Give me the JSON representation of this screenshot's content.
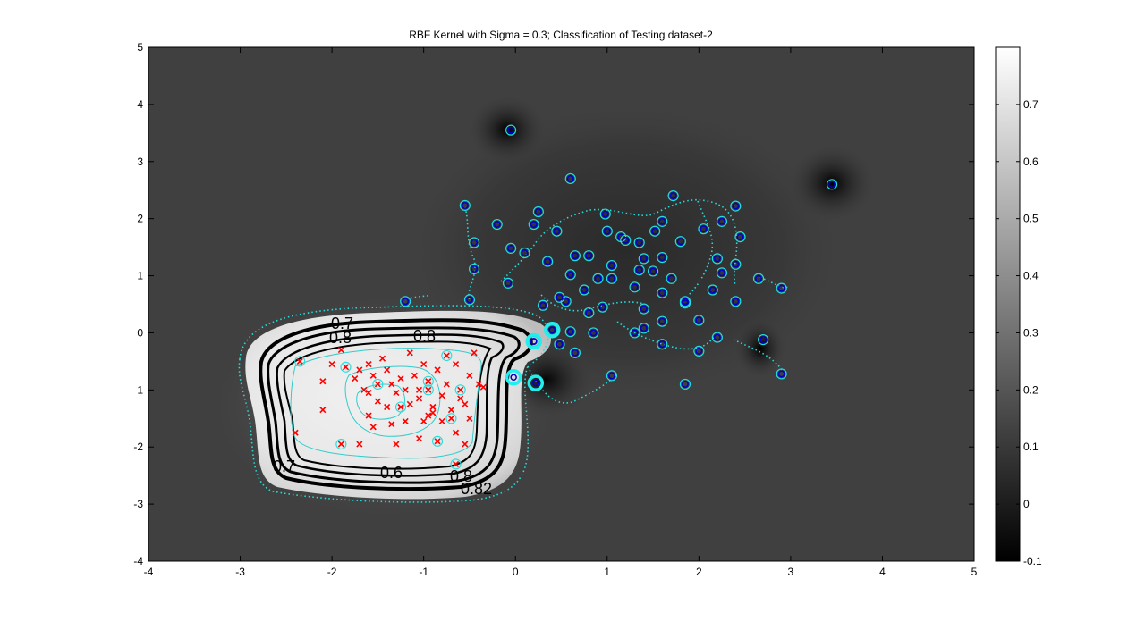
{
  "chart_data": {
    "type": "scatter",
    "title": "RBF Kernel with Sigma = 0.3; Classification of Testing dataset-2",
    "xlim": [
      -4,
      5
    ],
    "ylim": [
      -4,
      5
    ],
    "x_ticks": [
      "-4",
      "-3",
      "-2",
      "-1",
      "0",
      "1",
      "2",
      "3",
      "4",
      "5"
    ],
    "y_ticks": [
      "-4",
      "-3",
      "-2",
      "-1",
      "0",
      "1",
      "2",
      "3",
      "4",
      "5"
    ],
    "colorbar": {
      "range": [
        -0.1,
        0.8
      ],
      "ticks": [
        "-0.1",
        "0",
        "0.1",
        "0.2",
        "0.3",
        "0.4",
        "0.5",
        "0.6",
        "0.7"
      ],
      "colormap": "gray"
    },
    "contour_labels": [
      "0.7",
      "0.8",
      "0.8",
      "0.7",
      "0.6",
      "0.8",
      "0.82"
    ],
    "series": [
      {
        "marker": "x",
        "color": "#ff0000",
        "points": [
          [
            -2.35,
            -0.5
          ],
          [
            -2.1,
            -0.85
          ],
          [
            -2.0,
            -0.55
          ],
          [
            -1.9,
            -0.3
          ],
          [
            -1.85,
            -0.6
          ],
          [
            -1.75,
            -0.8
          ],
          [
            -1.7,
            -0.65
          ],
          [
            -1.6,
            -0.55
          ],
          [
            -1.55,
            -0.75
          ],
          [
            -1.5,
            -0.9
          ],
          [
            -1.45,
            -0.45
          ],
          [
            -1.4,
            -0.65
          ],
          [
            -1.35,
            -0.9
          ],
          [
            -1.3,
            -1.05
          ],
          [
            -1.25,
            -1.3
          ],
          [
            -1.2,
            -1.0
          ],
          [
            -1.15,
            -1.25
          ],
          [
            -1.1,
            -0.75
          ],
          [
            -1.05,
            -1.15
          ],
          [
            -1.0,
            -0.55
          ],
          [
            -0.95,
            -0.85
          ],
          [
            -0.9,
            -1.3
          ],
          [
            -0.85,
            -0.65
          ],
          [
            -0.8,
            -1.1
          ],
          [
            -0.75,
            -0.9
          ],
          [
            -0.7,
            -1.35
          ],
          [
            -0.65,
            -0.55
          ],
          [
            -0.6,
            -1.0
          ],
          [
            -0.55,
            -1.25
          ],
          [
            -0.5,
            -0.75
          ],
          [
            -0.45,
            -0.35
          ],
          [
            -0.4,
            -0.9
          ],
          [
            -0.35,
            -0.95
          ],
          [
            -0.75,
            -0.4
          ],
          [
            -1.15,
            -0.35
          ],
          [
            -1.6,
            -1.45
          ],
          [
            -1.7,
            -1.95
          ],
          [
            -1.9,
            -1.95
          ],
          [
            -2.1,
            -1.35
          ],
          [
            -2.4,
            -1.75
          ],
          [
            -1.55,
            -1.65
          ],
          [
            -1.35,
            -1.6
          ],
          [
            -1.3,
            -1.95
          ],
          [
            -1.05,
            -1.85
          ],
          [
            -0.85,
            -1.9
          ],
          [
            -0.65,
            -1.75
          ],
          [
            -0.55,
            -1.95
          ],
          [
            -0.65,
            -2.3
          ],
          [
            -1.0,
            -1.55
          ],
          [
            -0.9,
            -1.4
          ],
          [
            -1.5,
            -1.2
          ],
          [
            -1.2,
            -1.55
          ],
          [
            -0.95,
            -1.0
          ],
          [
            -1.6,
            -1.05
          ],
          [
            -0.8,
            -1.55
          ],
          [
            -0.7,
            -1.5
          ],
          [
            -0.5,
            -1.5
          ],
          [
            -0.6,
            -1.15
          ],
          [
            -1.4,
            -1.3
          ],
          [
            -1.25,
            -0.8
          ],
          [
            -1.05,
            -1.0
          ],
          [
            -0.95,
            -1.45
          ],
          [
            -1.65,
            -1.0
          ]
        ]
      },
      {
        "marker": "o",
        "color": "#0000cc",
        "points": [
          [
            -0.05,
            3.55
          ],
          [
            3.45,
            2.6
          ],
          [
            0.6,
            2.7
          ],
          [
            1.72,
            2.4
          ],
          [
            2.4,
            2.22
          ],
          [
            -0.55,
            2.23
          ],
          [
            0.25,
            2.12
          ],
          [
            0.98,
            2.08
          ],
          [
            -0.2,
            1.9
          ],
          [
            0.2,
            1.9
          ],
          [
            0.45,
            1.78
          ],
          [
            1.0,
            1.78
          ],
          [
            1.15,
            1.68
          ],
          [
            1.2,
            1.62
          ],
          [
            1.35,
            1.58
          ],
          [
            1.52,
            1.78
          ],
          [
            1.6,
            1.95
          ],
          [
            1.8,
            1.6
          ],
          [
            2.05,
            1.82
          ],
          [
            2.25,
            1.95
          ],
          [
            2.45,
            1.68
          ],
          [
            -0.45,
            1.58
          ],
          [
            -0.05,
            1.48
          ],
          [
            0.1,
            1.4
          ],
          [
            0.35,
            1.25
          ],
          [
            0.65,
            1.35
          ],
          [
            0.8,
            1.35
          ],
          [
            1.05,
            1.18
          ],
          [
            1.4,
            1.3
          ],
          [
            1.6,
            1.32
          ],
          [
            2.2,
            1.3
          ],
          [
            2.4,
            1.2
          ],
          [
            -0.45,
            1.12
          ],
          [
            0.6,
            1.02
          ],
          [
            0.9,
            0.95
          ],
          [
            1.05,
            0.95
          ],
          [
            1.35,
            1.1
          ],
          [
            1.5,
            1.08
          ],
          [
            1.7,
            0.95
          ],
          [
            2.25,
            1.05
          ],
          [
            2.65,
            0.95
          ],
          [
            -0.08,
            0.87
          ],
          [
            0.75,
            0.75
          ],
          [
            1.3,
            0.8
          ],
          [
            1.6,
            0.7
          ],
          [
            2.15,
            0.75
          ],
          [
            2.9,
            0.78
          ],
          [
            -1.2,
            0.55
          ],
          [
            -0.5,
            0.58
          ],
          [
            0.3,
            0.48
          ],
          [
            0.55,
            0.55
          ],
          [
            0.95,
            0.45
          ],
          [
            1.4,
            0.42
          ],
          [
            1.85,
            0.52
          ],
          [
            2.4,
            0.55
          ],
          [
            0.8,
            0.35
          ],
          [
            0.4,
            0.05
          ],
          [
            0.6,
            0.02
          ],
          [
            0.85,
            0.0
          ],
          [
            1.3,
            0.0
          ],
          [
            1.4,
            0.08
          ],
          [
            1.6,
            0.2
          ],
          [
            2.0,
            0.22
          ],
          [
            0.2,
            -0.15
          ],
          [
            0.48,
            -0.2
          ],
          [
            1.6,
            -0.2
          ],
          [
            2.2,
            -0.08
          ],
          [
            2.7,
            -0.12
          ],
          [
            0.65,
            -0.35
          ],
          [
            2.0,
            -0.32
          ],
          [
            1.05,
            -0.75
          ],
          [
            2.9,
            -0.72
          ],
          [
            1.85,
            -0.9
          ],
          [
            0.48,
            0.62
          ],
          [
            1.85,
            0.55
          ]
        ]
      }
    ],
    "support_vectors": [
      [
        0.2,
        -0.15
      ],
      [
        0.4,
        0.05
      ],
      [
        -0.02,
        -0.78
      ],
      [
        0.22,
        -0.88
      ]
    ]
  }
}
